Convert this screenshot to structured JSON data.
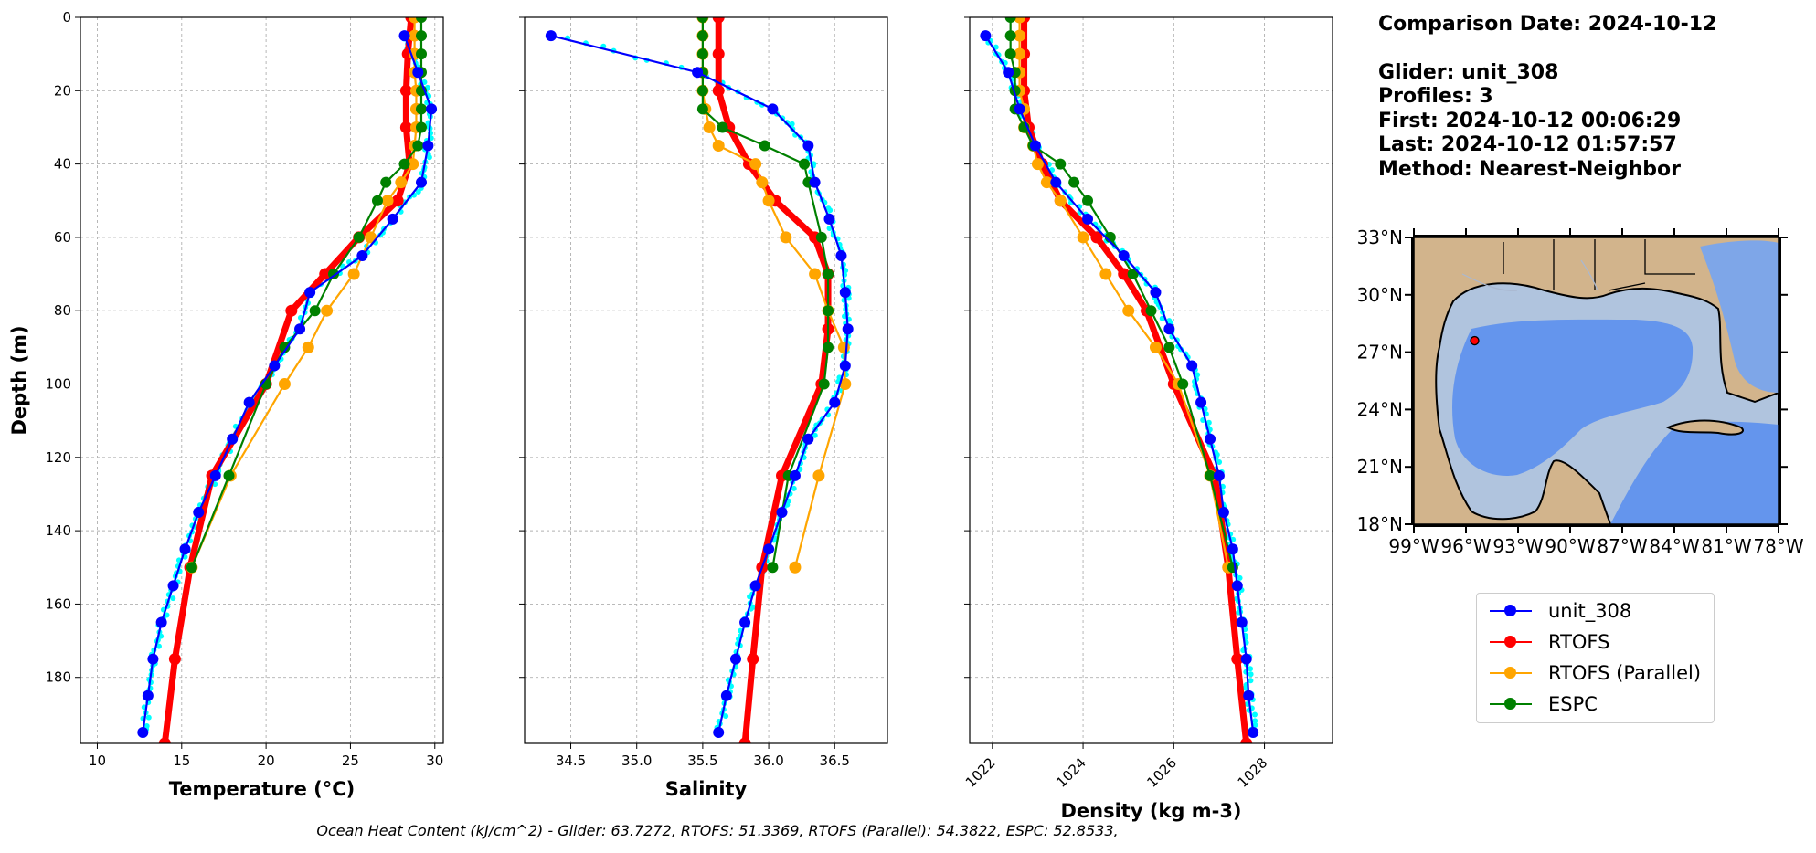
{
  "figure": {
    "footer": "Ocean Heat Content (kJ/cm^2) - Glider: 63.7272,  RTOFS: 51.3369,  RTOFS (Parallel): 54.3822,  ESPC: 52.8533,",
    "info": {
      "comparison_date": "Comparison Date: 2024-10-12",
      "glider": "Glider: unit_308",
      "profiles": "Profiles: 3",
      "first": "First: 2024-10-12 00:06:29",
      "last": "Last: 2024-10-12 01:57:57",
      "method": "Method: Nearest-Neighbor"
    },
    "legend": [
      {
        "label": "unit_308",
        "color": "#0000ff"
      },
      {
        "label": "RTOFS",
        "color": "#ff0000"
      },
      {
        "label": "RTOFS (Parallel)",
        "color": "#ffa500"
      },
      {
        "label": "ESPC",
        "color": "#008000"
      }
    ],
    "map": {
      "lat_ticks": [
        "33°N",
        "30°N",
        "27°N",
        "24°N",
        "21°N",
        "18°N"
      ],
      "lon_ticks": [
        "99°W",
        "96°W",
        "93°W",
        "90°W",
        "87°W",
        "84°W",
        "81°W",
        "78°W"
      ],
      "marker": {
        "lon": -95.5,
        "lat": 27.6,
        "color": "#ff0000"
      },
      "colors": {
        "land": "#d2b48c",
        "shelf": "#b0c4de",
        "deep": "#6495ed",
        "mid": "#7ea6e8"
      }
    }
  },
  "chart_data": [
    {
      "type": "line",
      "xlabel": "Temperature (°C)",
      "ylabel": "Depth (m)",
      "xlim": [
        9,
        30.5
      ],
      "ylim": [
        198,
        0
      ],
      "xticks": [
        10,
        15,
        20,
        25,
        30
      ],
      "yticks": [
        0,
        20,
        40,
        60,
        80,
        100,
        120,
        140,
        160,
        180
      ],
      "series": [
        {
          "name": "unit_308",
          "color": "#0000ff",
          "points": [
            [
              28.2,
              5
            ],
            [
              29.0,
              15
            ],
            [
              29.8,
              25
            ],
            [
              29.6,
              35
            ],
            [
              29.2,
              45
            ],
            [
              27.5,
              55
            ],
            [
              25.7,
              65
            ],
            [
              22.6,
              75
            ],
            [
              22.0,
              85
            ],
            [
              20.5,
              95
            ],
            [
              19.0,
              105
            ],
            [
              18.0,
              115
            ],
            [
              17.0,
              125
            ],
            [
              16.0,
              135
            ],
            [
              15.2,
              145
            ],
            [
              14.5,
              155
            ],
            [
              13.8,
              165
            ],
            [
              13.3,
              175
            ],
            [
              13.0,
              185
            ],
            [
              12.7,
              195
            ]
          ]
        },
        {
          "name": "RTOFS",
          "color": "#ff0000",
          "points": [
            [
              28.6,
              0
            ],
            [
              28.4,
              10
            ],
            [
              28.3,
              20
            ],
            [
              28.3,
              30
            ],
            [
              28.5,
              40
            ],
            [
              27.8,
              50
            ],
            [
              25.5,
              60
            ],
            [
              23.5,
              70
            ],
            [
              21.5,
              80
            ],
            [
              20.0,
              100
            ],
            [
              16.8,
              125
            ],
            [
              15.5,
              150
            ],
            [
              14.6,
              175
            ],
            [
              14.0,
              198
            ]
          ]
        },
        {
          "name": "RTOFS (Parallel)",
          "color": "#ffa500",
          "points": [
            [
              28.8,
              0
            ],
            [
              28.8,
              5
            ],
            [
              28.8,
              10
            ],
            [
              28.8,
              15
            ],
            [
              28.9,
              20
            ],
            [
              28.9,
              25
            ],
            [
              28.9,
              30
            ],
            [
              28.8,
              35
            ],
            [
              28.7,
              40
            ],
            [
              28.0,
              45
            ],
            [
              27.2,
              50
            ],
            [
              26.2,
              60
            ],
            [
              25.2,
              70
            ],
            [
              23.6,
              80
            ],
            [
              22.5,
              90
            ],
            [
              21.1,
              100
            ],
            [
              17.9,
              125
            ],
            [
              15.6,
              150
            ]
          ]
        },
        {
          "name": "ESPC",
          "color": "#008000",
          "points": [
            [
              29.2,
              0
            ],
            [
              29.2,
              5
            ],
            [
              29.2,
              10
            ],
            [
              29.2,
              15
            ],
            [
              29.2,
              20
            ],
            [
              29.2,
              25
            ],
            [
              29.2,
              30
            ],
            [
              29.0,
              35
            ],
            [
              28.2,
              40
            ],
            [
              27.1,
              45
            ],
            [
              26.6,
              50
            ],
            [
              25.5,
              60
            ],
            [
              24.0,
              70
            ],
            [
              22.9,
              80
            ],
            [
              21.1,
              90
            ],
            [
              20.0,
              100
            ],
            [
              17.8,
              125
            ],
            [
              15.6,
              150
            ]
          ]
        }
      ]
    },
    {
      "type": "line",
      "xlabel": "Salinity",
      "ylim": [
        198,
        0
      ],
      "xlim": [
        34.15,
        36.9
      ],
      "xticks": [
        34.5,
        35.0,
        35.5,
        36.0,
        36.5
      ],
      "yticks": [
        0,
        20,
        40,
        60,
        80,
        100,
        120,
        140,
        160,
        180
      ],
      "series": [
        {
          "name": "unit_308",
          "color": "#0000ff",
          "points": [
            [
              34.35,
              5
            ],
            [
              35.46,
              15
            ],
            [
              36.03,
              25
            ],
            [
              36.3,
              35
            ],
            [
              36.35,
              45
            ],
            [
              36.46,
              55
            ],
            [
              36.55,
              65
            ],
            [
              36.58,
              75
            ],
            [
              36.6,
              85
            ],
            [
              36.58,
              95
            ],
            [
              36.5,
              105
            ],
            [
              36.3,
              115
            ],
            [
              36.2,
              125
            ],
            [
              36.1,
              135
            ],
            [
              36.0,
              145
            ],
            [
              35.9,
              155
            ],
            [
              35.82,
              165
            ],
            [
              35.75,
              175
            ],
            [
              35.68,
              185
            ],
            [
              35.62,
              195
            ]
          ]
        },
        {
          "name": "RTOFS",
          "color": "#ff0000",
          "points": [
            [
              35.62,
              0
            ],
            [
              35.62,
              10
            ],
            [
              35.62,
              20
            ],
            [
              35.7,
              30
            ],
            [
              35.85,
              40
            ],
            [
              36.05,
              50
            ],
            [
              36.35,
              60
            ],
            [
              36.45,
              70
            ],
            [
              36.45,
              85
            ],
            [
              36.4,
              100
            ],
            [
              36.1,
              125
            ],
            [
              35.95,
              150
            ],
            [
              35.88,
              175
            ],
            [
              35.82,
              198
            ]
          ]
        },
        {
          "name": "RTOFS (Parallel)",
          "color": "#ffa500",
          "points": [
            [
              35.5,
              0
            ],
            [
              35.5,
              5
            ],
            [
              35.5,
              10
            ],
            [
              35.5,
              15
            ],
            [
              35.5,
              20
            ],
            [
              35.52,
              25
            ],
            [
              35.55,
              30
            ],
            [
              35.62,
              35
            ],
            [
              35.9,
              40
            ],
            [
              35.95,
              45
            ],
            [
              36.0,
              50
            ],
            [
              36.13,
              60
            ],
            [
              36.35,
              70
            ],
            [
              36.45,
              80
            ],
            [
              36.57,
              90
            ],
            [
              36.58,
              100
            ],
            [
              36.38,
              125
            ],
            [
              36.2,
              150
            ]
          ]
        },
        {
          "name": "ESPC",
          "color": "#008000",
          "points": [
            [
              35.5,
              0
            ],
            [
              35.5,
              5
            ],
            [
              35.5,
              10
            ],
            [
              35.5,
              15
            ],
            [
              35.5,
              20
            ],
            [
              35.5,
              25
            ],
            [
              35.65,
              30
            ],
            [
              35.97,
              35
            ],
            [
              36.27,
              40
            ],
            [
              36.3,
              45
            ],
            [
              36.4,
              60
            ],
            [
              36.45,
              70
            ],
            [
              36.45,
              80
            ],
            [
              36.45,
              90
            ],
            [
              36.42,
              100
            ],
            [
              36.15,
              125
            ],
            [
              36.03,
              150
            ]
          ]
        }
      ]
    },
    {
      "type": "line",
      "xlabel": "Density (kg m-3)",
      "ylim": [
        198,
        0
      ],
      "xlim": [
        1021.5,
        1029.5
      ],
      "xticks": [
        1022,
        1024,
        1026,
        1028
      ],
      "yticks": [
        0,
        20,
        40,
        60,
        80,
        100,
        120,
        140,
        160,
        180
      ],
      "series": [
        {
          "name": "unit_308",
          "color": "#0000ff",
          "points": [
            [
              1021.85,
              5
            ],
            [
              1022.35,
              15
            ],
            [
              1022.6,
              25
            ],
            [
              1022.95,
              35
            ],
            [
              1023.4,
              45
            ],
            [
              1024.1,
              55
            ],
            [
              1024.9,
              65
            ],
            [
              1025.6,
              75
            ],
            [
              1025.9,
              85
            ],
            [
              1026.4,
              95
            ],
            [
              1026.6,
              105
            ],
            [
              1026.8,
              115
            ],
            [
              1027.0,
              125
            ],
            [
              1027.1,
              135
            ],
            [
              1027.3,
              145
            ],
            [
              1027.4,
              155
            ],
            [
              1027.5,
              165
            ],
            [
              1027.6,
              175
            ],
            [
              1027.65,
              185
            ],
            [
              1027.75,
              195
            ]
          ]
        },
        {
          "name": "RTOFS",
          "color": "#ff0000",
          "points": [
            [
              1022.7,
              0
            ],
            [
              1022.7,
              10
            ],
            [
              1022.7,
              20
            ],
            [
              1022.8,
              30
            ],
            [
              1023.1,
              40
            ],
            [
              1023.5,
              50
            ],
            [
              1024.3,
              60
            ],
            [
              1024.9,
              70
            ],
            [
              1025.4,
              80
            ],
            [
              1026.0,
              100
            ],
            [
              1026.9,
              125
            ],
            [
              1027.2,
              150
            ],
            [
              1027.4,
              175
            ],
            [
              1027.6,
              198
            ]
          ]
        },
        {
          "name": "RTOFS (Parallel)",
          "color": "#ffa500",
          "points": [
            [
              1022.6,
              0
            ],
            [
              1022.6,
              5
            ],
            [
              1022.6,
              10
            ],
            [
              1022.6,
              15
            ],
            [
              1022.6,
              20
            ],
            [
              1022.7,
              25
            ],
            [
              1022.7,
              30
            ],
            [
              1022.9,
              35
            ],
            [
              1023.0,
              40
            ],
            [
              1023.2,
              45
            ],
            [
              1023.5,
              50
            ],
            [
              1024.0,
              60
            ],
            [
              1024.5,
              70
            ],
            [
              1025.0,
              80
            ],
            [
              1025.6,
              90
            ],
            [
              1026.1,
              100
            ],
            [
              1026.8,
              125
            ],
            [
              1027.2,
              150
            ]
          ]
        },
        {
          "name": "ESPC",
          "color": "#008000",
          "points": [
            [
              1022.4,
              0
            ],
            [
              1022.4,
              5
            ],
            [
              1022.4,
              10
            ],
            [
              1022.5,
              15
            ],
            [
              1022.5,
              20
            ],
            [
              1022.5,
              25
            ],
            [
              1022.7,
              30
            ],
            [
              1022.9,
              35
            ],
            [
              1023.5,
              40
            ],
            [
              1023.8,
              45
            ],
            [
              1024.1,
              50
            ],
            [
              1024.6,
              60
            ],
            [
              1025.1,
              70
            ],
            [
              1025.5,
              80
            ],
            [
              1025.9,
              90
            ],
            [
              1026.2,
              100
            ],
            [
              1026.8,
              125
            ],
            [
              1027.3,
              150
            ]
          ]
        }
      ]
    }
  ]
}
